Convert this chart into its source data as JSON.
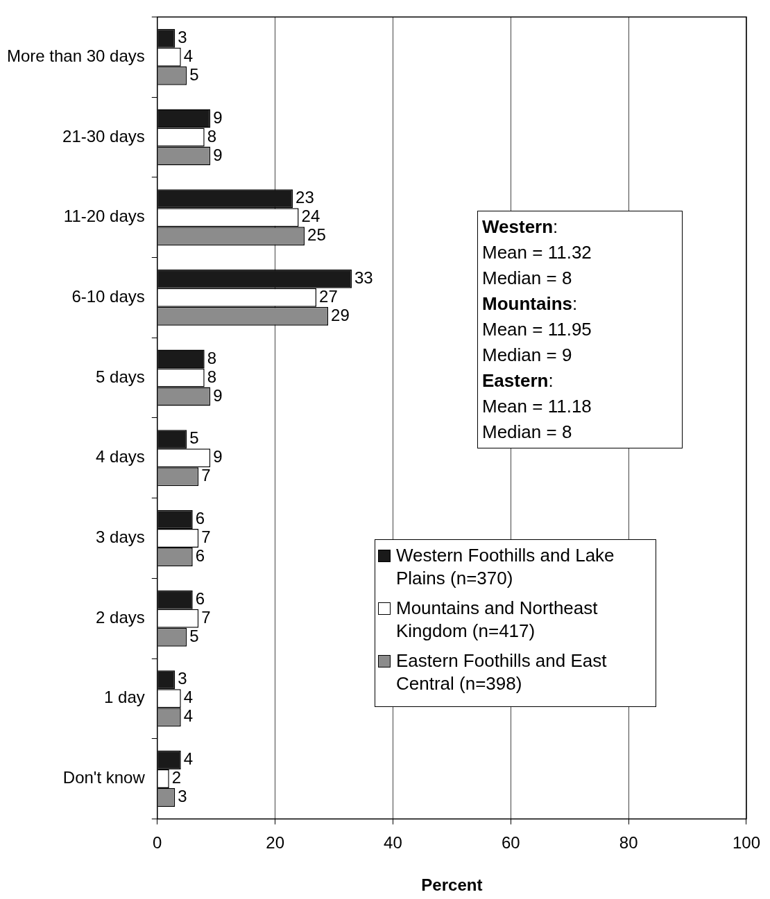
{
  "chart_data": {
    "type": "bar",
    "orientation": "horizontal",
    "xlabel": "Percent",
    "categories": [
      "More than 30 days",
      "21-30 days",
      "11-20 days",
      "6-10 days",
      "5 days",
      "4 days",
      "3 days",
      "2 days",
      "1 day",
      "Don't know"
    ],
    "series": [
      {
        "name": "Western Foothills and Lake Plains (n=370)",
        "color": "#1a1a1a",
        "values": [
          3,
          9,
          23,
          33,
          8,
          5,
          6,
          6,
          3,
          4
        ]
      },
      {
        "name": "Mountains and Northeast Kingdom (n=417)",
        "color": "#ffffff",
        "values": [
          4,
          8,
          24,
          27,
          8,
          9,
          7,
          7,
          4,
          2
        ]
      },
      {
        "name": "Eastern Foothills and East Central (n=398)",
        "color": "#8c8c8c",
        "values": [
          5,
          9,
          25,
          29,
          9,
          7,
          6,
          5,
          4,
          3
        ]
      }
    ],
    "xlim": [
      0,
      100
    ],
    "xticks": [
      0,
      20,
      40,
      60,
      80,
      100
    ],
    "grid": "x",
    "legend": "right",
    "data_labels": true,
    "annotations": [
      "Western:",
      "Mean = 11.32",
      "Median = 8",
      "Mountains:",
      "Mean = 11.95",
      "Median = 9",
      "Eastern:",
      "Mean = 11.18",
      "Median = 8"
    ]
  }
}
